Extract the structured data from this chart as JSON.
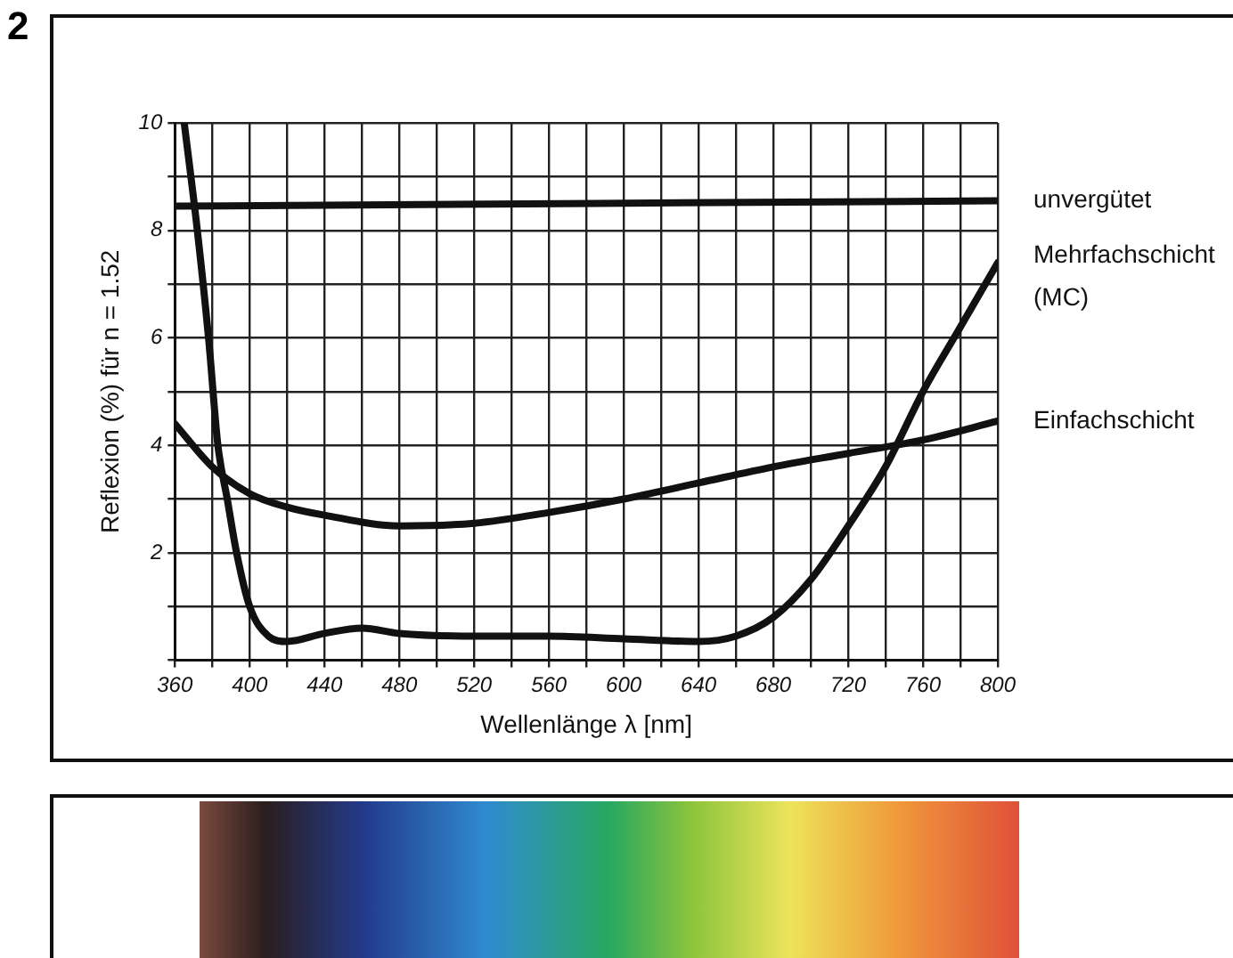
{
  "chart_data": {
    "type": "line",
    "xlabel": "Wellenlänge λ [nm]",
    "ylabel": "Reflexion (%) für n = 1.52",
    "annotations": [
      "2"
    ],
    "xlim": [
      360,
      800
    ],
    "ylim": [
      0,
      10
    ],
    "xticks": [
      360,
      {
        "value": 380,
        "label": null
      },
      400,
      {
        "value": 420,
        "label": null
      },
      440,
      {
        "value": 460,
        "label": null
      },
      480,
      {
        "value": 500,
        "label": null
      },
      520,
      {
        "value": 540,
        "label": null
      },
      560,
      {
        "value": 580,
        "label": null
      },
      600,
      {
        "value": 620,
        "label": null
      },
      640,
      {
        "value": 660,
        "label": null
      },
      680,
      {
        "value": 700,
        "label": null
      },
      720,
      {
        "value": 740,
        "label": null
      },
      760,
      {
        "value": 780,
        "label": null
      },
      800
    ],
    "yticks": [
      {
        "value": 0,
        "label": null
      },
      {
        "value": 1,
        "label": null
      },
      2,
      {
        "value": 3,
        "label": null
      },
      4,
      {
        "value": 5,
        "label": null
      },
      6,
      {
        "value": 7,
        "label": null
      },
      8,
      {
        "value": 9,
        "label": null
      },
      10
    ],
    "grid": true,
    "legend": false,
    "marker": "none",
    "line_style": "solid",
    "series": [
      {
        "name": "unvergütet",
        "color": "#111111",
        "x": [
          360,
          800
        ],
        "values": [
          8.45,
          8.55
        ]
      },
      {
        "name": "Mehrfachschicht (MC)",
        "color": "#111111",
        "x": [
          365,
          372,
          378,
          383,
          388,
          393,
          400,
          410,
          420,
          440,
          460,
          480,
          520,
          560,
          600,
          640,
          660,
          680,
          700,
          720,
          740,
          760,
          780,
          800
        ],
        "values": [
          10,
          8,
          6,
          4,
          3,
          2,
          1,
          0.45,
          0.35,
          0.5,
          0.6,
          0.5,
          0.45,
          0.45,
          0.4,
          0.35,
          0.45,
          0.8,
          1.5,
          2.5,
          3.6,
          5,
          6.2,
          7.4
        ]
      },
      {
        "name": "Einfachschicht",
        "color": "#111111",
        "x": [
          360,
          380,
          400,
          420,
          440,
          480,
          520,
          560,
          600,
          640,
          680,
          720,
          760,
          800
        ],
        "values": [
          4.4,
          3.6,
          3.1,
          2.85,
          2.7,
          2.5,
          2.55,
          2.75,
          3.0,
          3.3,
          3.6,
          3.85,
          4.1,
          4.45
        ]
      }
    ]
  }
}
